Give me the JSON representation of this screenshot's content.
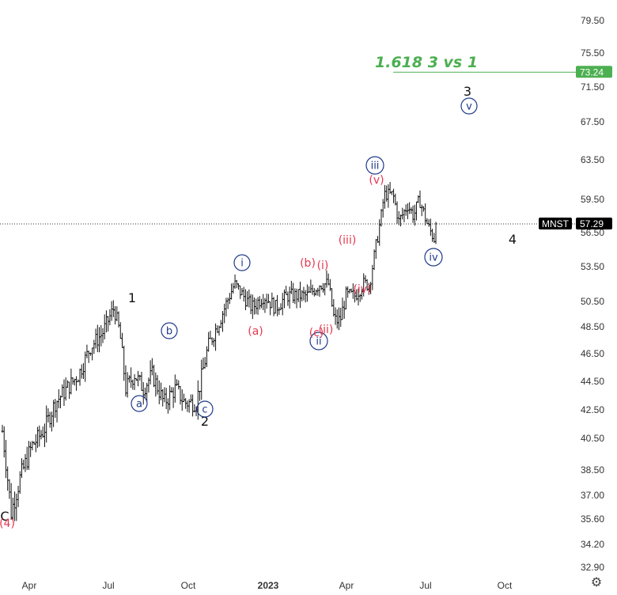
{
  "chart_data": {
    "type": "ohlc",
    "symbol": "MNST",
    "last_price": "57.29",
    "y_ticks": [
      "79.50",
      "75.50",
      "71.50",
      "67.50",
      "63.50",
      "59.50",
      "56.50",
      "53.50",
      "50.50",
      "48.50",
      "46.50",
      "44.50",
      "42.50",
      "40.50",
      "38.50",
      "37.00",
      "35.60",
      "34.20",
      "32.90"
    ],
    "x_ticks": [
      {
        "label": "Apr",
        "bold": false
      },
      {
        "label": "Jul",
        "bold": false
      },
      {
        "label": "Oct",
        "bold": false
      },
      {
        "label": "2023",
        "bold": true
      },
      {
        "label": "Apr",
        "bold": false
      },
      {
        "label": "Jul",
        "bold": false
      },
      {
        "label": "Oct",
        "bold": false
      }
    ],
    "price_path": [
      [
        0,
        41
      ],
      [
        3,
        36
      ],
      [
        6,
        38
      ],
      [
        10,
        40
      ],
      [
        14,
        41
      ],
      [
        18,
        43
      ],
      [
        22,
        44
      ],
      [
        26,
        45
      ],
      [
        30,
        47
      ],
      [
        34,
        48
      ],
      [
        38,
        50
      ],
      [
        40,
        48
      ],
      [
        42,
        44
      ],
      [
        45,
        45
      ],
      [
        48,
        44
      ],
      [
        51,
        45
      ],
      [
        55,
        43
      ],
      [
        59,
        44
      ],
      [
        62,
        43
      ],
      [
        66,
        43
      ],
      [
        70,
        47
      ],
      [
        74,
        49
      ],
      [
        79,
        52
      ],
      [
        82,
        51
      ],
      [
        85,
        50
      ],
      [
        89,
        51
      ],
      [
        93,
        50
      ],
      [
        97,
        51
      ],
      [
        101,
        51
      ],
      [
        104,
        51
      ],
      [
        108,
        52
      ],
      [
        111,
        52
      ],
      [
        113,
        49
      ],
      [
        115,
        49
      ],
      [
        117,
        51
      ],
      [
        120,
        51
      ],
      [
        123,
        52
      ],
      [
        125,
        52
      ],
      [
        127,
        55
      ],
      [
        129,
        58
      ],
      [
        130,
        60
      ],
      [
        133,
        60
      ],
      [
        135,
        57.5
      ],
      [
        138,
        59
      ],
      [
        140,
        58
      ],
      [
        142,
        59.5
      ],
      [
        145,
        57
      ],
      [
        147,
        56
      ],
      [
        148,
        57.3
      ]
    ],
    "fib_line": {
      "label": "1.618 3 vs 1",
      "value": 73.24,
      "tag": "73.24",
      "color": "#4caf50"
    },
    "last_tag_color": "#000000",
    "wave_labels": [
      {
        "text": "1",
        "style": "black",
        "circled": false
      },
      {
        "text": "2",
        "style": "black",
        "circled": false
      },
      {
        "text": "3",
        "style": "black",
        "circled": false
      },
      {
        "text": "4",
        "style": "black",
        "circled": false
      },
      {
        "text": "C",
        "style": "black",
        "circled": false
      },
      {
        "text": "a",
        "style": "blue",
        "circled": true
      },
      {
        "text": "b",
        "style": "blue",
        "circled": true
      },
      {
        "text": "c",
        "style": "blue",
        "circled": true
      },
      {
        "text": "i",
        "style": "blue",
        "circled": true
      },
      {
        "text": "ii",
        "style": "blue",
        "circled": true
      },
      {
        "text": "iii",
        "style": "blue",
        "circled": true
      },
      {
        "text": "iv",
        "style": "blue",
        "circled": true
      },
      {
        "text": "v",
        "style": "blue",
        "circled": true
      },
      {
        "text": "(4)",
        "style": "red",
        "circled": false
      },
      {
        "text": "(a)",
        "style": "red",
        "circled": false
      },
      {
        "text": "(b)",
        "style": "red",
        "circled": false
      },
      {
        "text": "(c)",
        "style": "red",
        "circled": false
      },
      {
        "text": "(i)",
        "style": "red",
        "circled": false
      },
      {
        "text": "(ii)",
        "style": "red",
        "circled": false
      },
      {
        "text": "(iii)",
        "style": "red",
        "circled": false
      },
      {
        "text": "(iv)",
        "style": "red",
        "circled": false
      },
      {
        "text": "(v)",
        "style": "red",
        "circled": false
      }
    ]
  },
  "settings_icon": "gear-icon"
}
